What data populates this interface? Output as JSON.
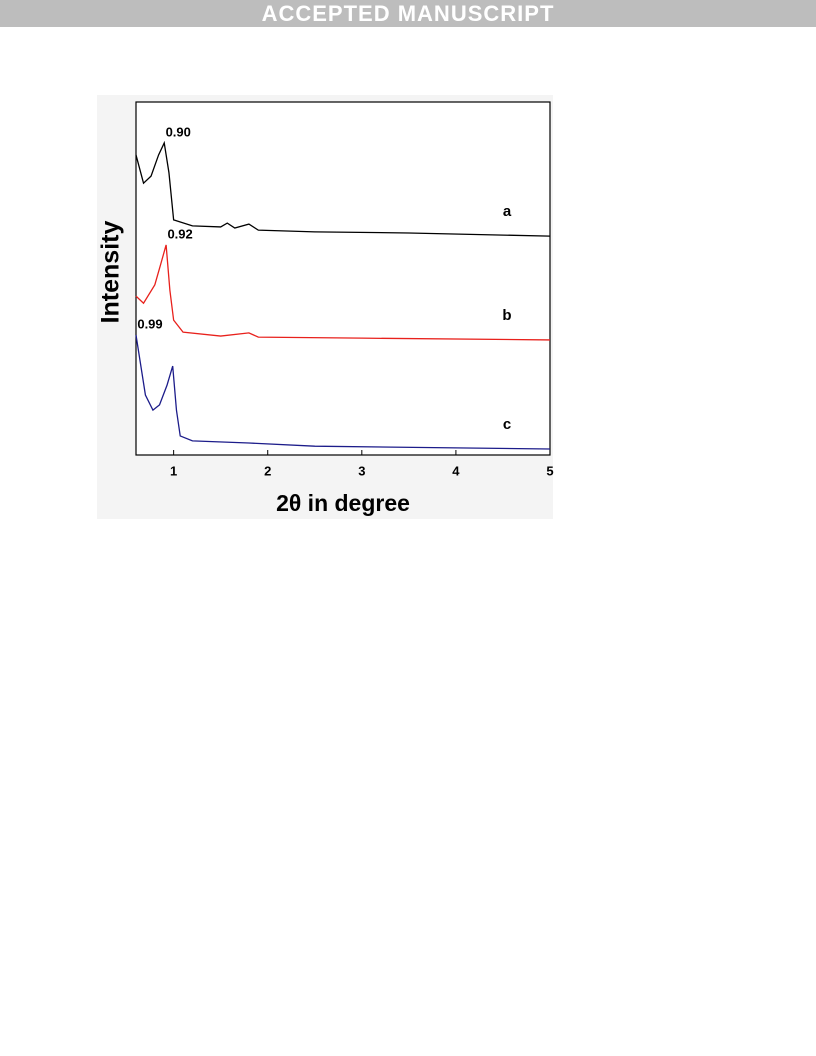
{
  "header": {
    "banner": "ACCEPTED MANUSCRIPT"
  },
  "chart_data": {
    "type": "line",
    "xlabel": "2θ  in degree",
    "ylabel": "Intensity",
    "xlim": [
      0.6,
      5
    ],
    "xticks": [
      1,
      2,
      3,
      4,
      5
    ],
    "ylim": [
      0,
      100
    ],
    "annotations": [
      "0.90",
      "0.92",
      "0.99"
    ],
    "series": [
      {
        "name": "a",
        "color": "#000000",
        "x": [
          0.6,
          0.68,
          0.76,
          0.84,
          0.9,
          0.95,
          1.0,
          1.2,
          1.5,
          1.57,
          1.65,
          1.8,
          1.9,
          2.5,
          3.5,
          5
        ],
        "values": [
          85,
          77,
          79,
          85,
          88.4,
          80,
          66.6,
          64.9,
          64.6,
          65.7,
          64.3,
          65.4,
          63.7,
          63.2,
          62.9,
          62.0
        ]
      },
      {
        "name": "b",
        "color": "#e8211c",
        "x": [
          0.6,
          0.68,
          0.8,
          0.86,
          0.92,
          0.96,
          1.0,
          1.1,
          1.5,
          1.8,
          1.9,
          3,
          5
        ],
        "values": [
          45,
          43,
          48.2,
          53.8,
          59.5,
          46.7,
          38.2,
          34.8,
          33.7,
          34.6,
          33.4,
          33.1,
          32.6
        ]
      },
      {
        "name": "c",
        "color": "#1c1c8a",
        "x": [
          0.6,
          0.7,
          0.78,
          0.85,
          0.93,
          0.99,
          1.03,
          1.07,
          1.2,
          1.8,
          2.5,
          5
        ],
        "values": [
          34,
          17,
          12.7,
          14.2,
          19.8,
          25.2,
          12.7,
          5.4,
          4.0,
          3.4,
          2.5,
          1.7
        ]
      }
    ]
  }
}
